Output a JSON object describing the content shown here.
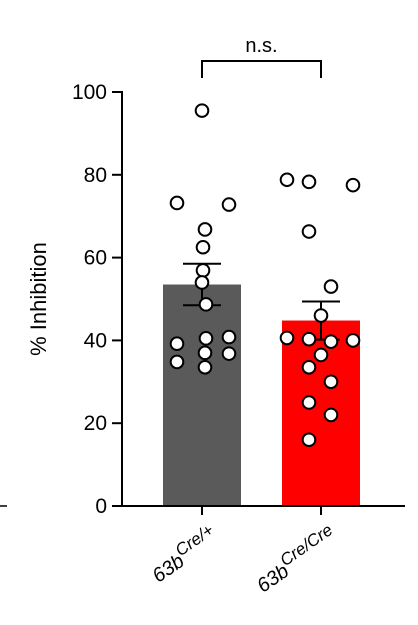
{
  "chart_data": {
    "type": "bar",
    "title": "",
    "xlabel": "",
    "ylabel": "% Inhibition",
    "ylim": [
      0,
      100
    ],
    "yticks": [
      0,
      20,
      40,
      60,
      80,
      100
    ],
    "grid": false,
    "legend": "none",
    "categories": [
      {
        "base": "63b",
        "sup": "Cre/+"
      },
      {
        "base": "63b",
        "sup": "Cre/Cre"
      }
    ],
    "values": [
      53.5,
      44.8
    ],
    "sem": [
      5.0,
      4.6
    ],
    "colors": [
      "#5a5a5a",
      "#ff0000"
    ],
    "points": [
      [
        95.5,
        73.2,
        72.8,
        66.8,
        62.5,
        56.9,
        54.0,
        48.7,
        40.8,
        40.5,
        39.2,
        37.0,
        36.8,
        34.8,
        33.5
      ],
      [
        78.8,
        78.3,
        77.5,
        66.3,
        53.0,
        46.0,
        40.6,
        40.3,
        40.0,
        39.7,
        36.5,
        33.5,
        30.0,
        25.0,
        22.0,
        16.0
      ]
    ],
    "significance": {
      "pair": [
        0,
        1
      ],
      "label": "n.s."
    }
  }
}
